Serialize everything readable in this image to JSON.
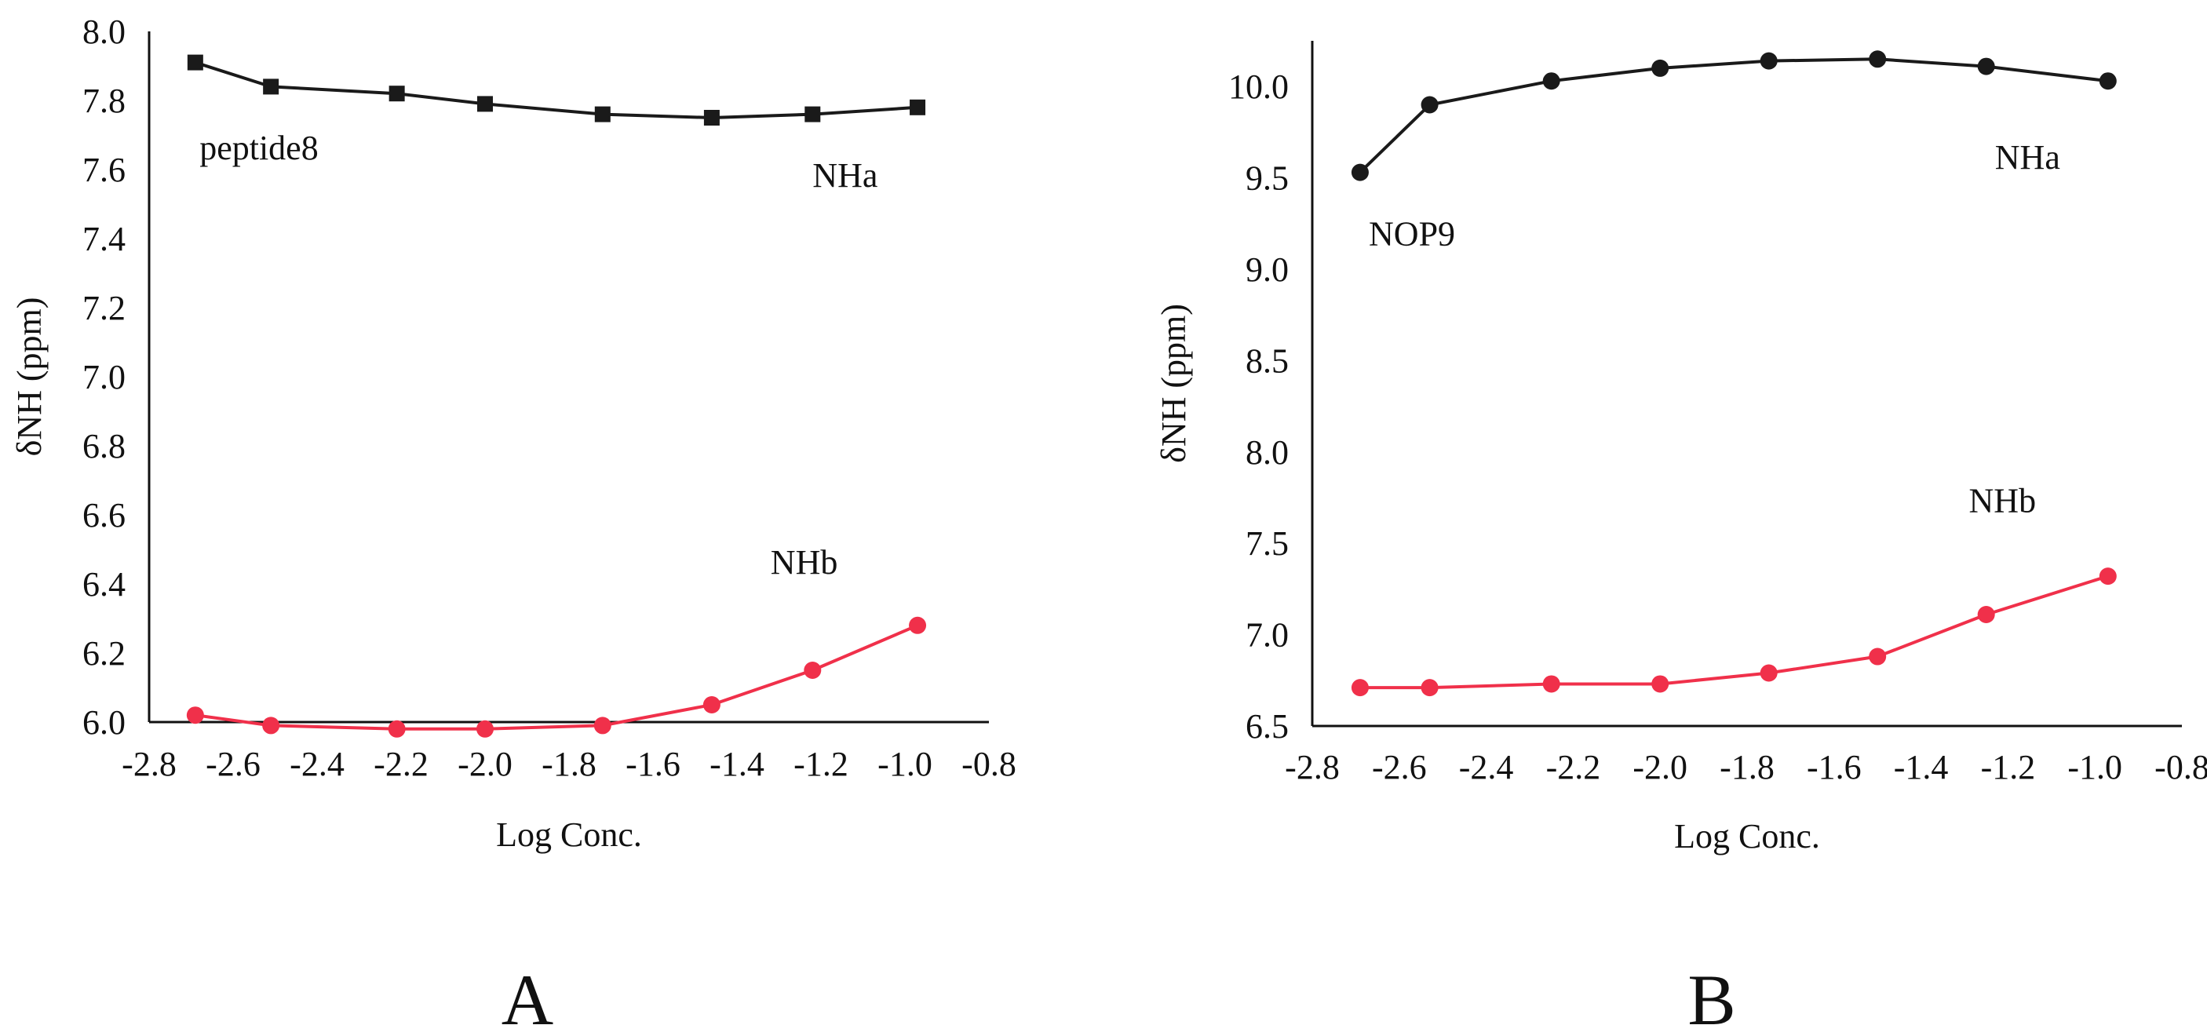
{
  "figure": {
    "panel_labels": [
      "A",
      "B"
    ]
  },
  "chart_data": [
    {
      "type": "line",
      "panel": "A",
      "xlabel": "Log Conc.",
      "ylabel": "δNH (ppm)",
      "xlim": [
        -2.8,
        -0.8
      ],
      "ylim": [
        6.0,
        8.0
      ],
      "x_ticks": [
        "-2.8",
        "-2.6",
        "-2.4",
        "-2.2",
        "-2.0",
        "-1.8",
        "-1.6",
        "-1.4",
        "-1.2",
        "-1.0",
        "-0.8"
      ],
      "y_ticks": [
        "6.0",
        "6.2",
        "6.4",
        "6.6",
        "6.8",
        "7.0",
        "7.2",
        "7.4",
        "7.6",
        "7.8",
        "8.0"
      ],
      "grid": false,
      "annotations": [
        {
          "text": "peptide8",
          "x": -2.68,
          "y": 7.63
        },
        {
          "text": "NHa",
          "x": -1.22,
          "y": 7.55
        },
        {
          "text": "NHb",
          "x": -1.32,
          "y": 6.43
        }
      ],
      "series": [
        {
          "color": "#1a1a1a",
          "marker": "square",
          "x": [
            -2.69,
            -2.51,
            -2.21,
            -2.0,
            -1.72,
            -1.46,
            -1.22,
            -0.97
          ],
          "y": [
            7.91,
            7.84,
            7.82,
            7.79,
            7.76,
            7.75,
            7.76,
            7.78
          ]
        },
        {
          "color": "#f0304a",
          "marker": "circle",
          "x": [
            -2.69,
            -2.51,
            -2.21,
            -2.0,
            -1.72,
            -1.46,
            -1.22,
            -0.97
          ],
          "y": [
            6.02,
            5.99,
            5.98,
            5.98,
            5.99,
            6.05,
            6.15,
            6.28
          ]
        }
      ]
    },
    {
      "type": "line",
      "panel": "B",
      "xlabel": "Log Conc.",
      "ylabel": "δNH (ppm)",
      "xlim": [
        -2.8,
        -0.8
      ],
      "ylim": [
        6.5,
        10.25
      ],
      "x_ticks": [
        "-2.8",
        "-2.6",
        "-2.4",
        "-2.2",
        "-2.0",
        "-1.8",
        "-1.6",
        "-1.4",
        "-1.2",
        "-1.0",
        "-0.8"
      ],
      "y_ticks": [
        "6.5",
        "7.0",
        "7.5",
        "8.0",
        "8.5",
        "9.0",
        "9.5",
        "10.0"
      ],
      "grid": false,
      "annotations": [
        {
          "text": "NOP9",
          "x": -2.67,
          "y": 9.13
        },
        {
          "text": "NHa",
          "x": -1.23,
          "y": 9.55
        },
        {
          "text": "NHb",
          "x": -1.29,
          "y": 7.67
        }
      ],
      "series": [
        {
          "color": "#1a1a1a",
          "marker": "circle",
          "x": [
            -2.69,
            -2.53,
            -2.25,
            -2.0,
            -1.75,
            -1.5,
            -1.25,
            -0.97
          ],
          "y": [
            9.53,
            9.9,
            10.03,
            10.1,
            10.14,
            10.15,
            10.11,
            10.03
          ]
        },
        {
          "color": "#f0304a",
          "marker": "circle",
          "x": [
            -2.69,
            -2.53,
            -2.25,
            -2.0,
            -1.75,
            -1.5,
            -1.25,
            -0.97
          ],
          "y": [
            6.71,
            6.71,
            6.73,
            6.73,
            6.79,
            6.88,
            7.11,
            7.32
          ]
        }
      ]
    }
  ]
}
